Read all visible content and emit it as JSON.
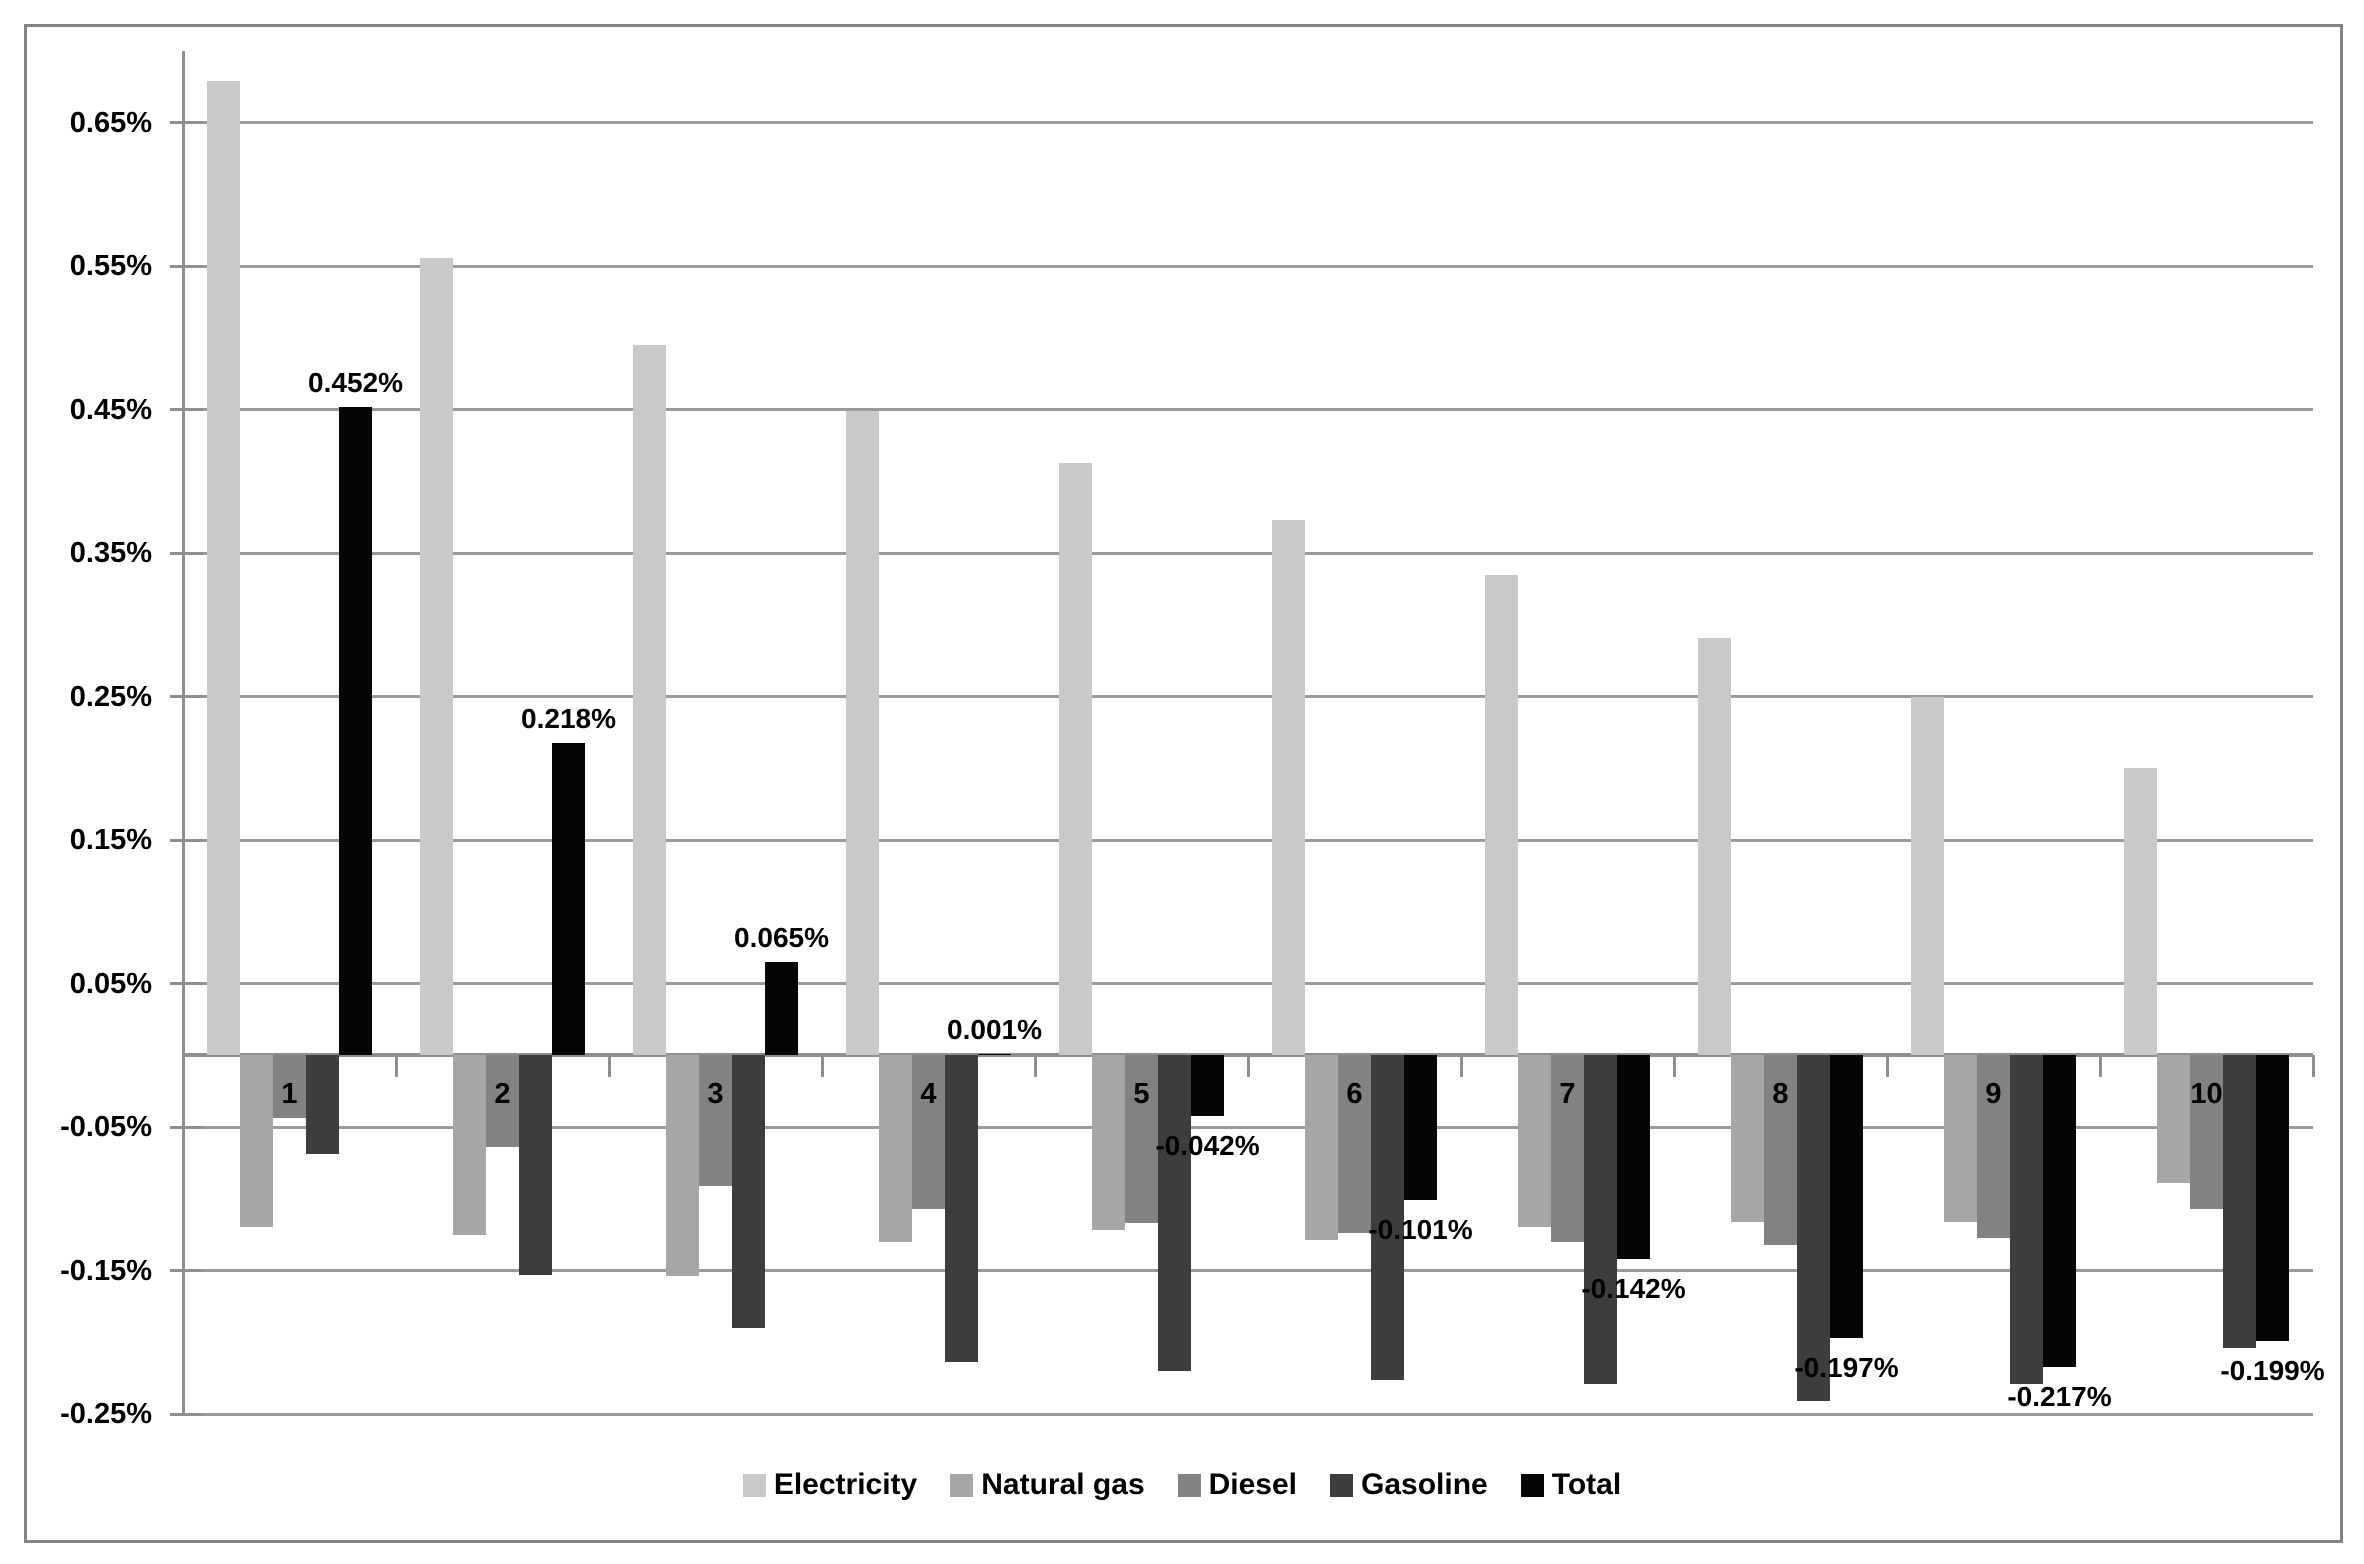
{
  "chart_data": {
    "type": "bar",
    "title": "",
    "xlabel": "",
    "ylabel": "",
    "categories": [
      "1",
      "2",
      "3",
      "4",
      "5",
      "6",
      "7",
      "8",
      "9",
      "10"
    ],
    "series": [
      {
        "name": "Electricity",
        "color": "#c9c9c9",
        "values": [
          0.679,
          0.556,
          0.495,
          0.449,
          0.413,
          0.373,
          0.335,
          0.291,
          0.25,
          0.2
        ]
      },
      {
        "name": "Natural gas",
        "color": "#a6a6a6",
        "values": [
          -0.12,
          -0.125,
          -0.154,
          -0.13,
          -0.122,
          -0.129,
          -0.12,
          -0.116,
          -0.116,
          -0.089
        ]
      },
      {
        "name": "Diesel",
        "color": "#828282",
        "values": [
          -0.044,
          -0.064,
          -0.091,
          -0.107,
          -0.117,
          -0.124,
          -0.13,
          -0.132,
          -0.127,
          -0.107
        ]
      },
      {
        "name": "Gasoline",
        "color": "#3d3d3d",
        "values": [
          -0.069,
          -0.153,
          -0.19,
          -0.214,
          -0.22,
          -0.226,
          -0.229,
          -0.241,
          -0.229,
          -0.204
        ]
      },
      {
        "name": "Total",
        "color": "#050505",
        "values": [
          0.452,
          0.218,
          0.065,
          0.001,
          -0.042,
          -0.101,
          -0.142,
          -0.197,
          -0.217,
          -0.199
        ],
        "labels": [
          "0.452%",
          "0.218%",
          "0.065%",
          "0.001%",
          "-0.042%",
          "-0.101%",
          "-0.142%",
          "-0.197%",
          "-0.217%",
          "-0.199%"
        ]
      }
    ],
    "y_axis": {
      "ylim": [
        -0.25,
        0.7
      ],
      "unit": "%",
      "tick_values": [
        0.65,
        0.55,
        0.45,
        0.35,
        0.25,
        0.15,
        0.05,
        -0.05,
        -0.15,
        -0.25
      ],
      "tick_labels": [
        "0.65%",
        "0.55%",
        "0.45%",
        "0.35%",
        "0.25%",
        "0.15%",
        "0.05%",
        "-0.05%",
        "-0.15%",
        "-0.25%"
      ]
    },
    "legend": {
      "position": "bottom",
      "entries": [
        "Electricity",
        "Natural gas",
        "Diesel",
        "Gasoline",
        "Total"
      ]
    },
    "grid": true,
    "data_labels_series": "Total"
  },
  "colors": {
    "background": "#ffffff",
    "gridline": "#9a9a9a",
    "axis": "#8f8f8f",
    "frame_border": "#848484",
    "text": "#000000"
  }
}
